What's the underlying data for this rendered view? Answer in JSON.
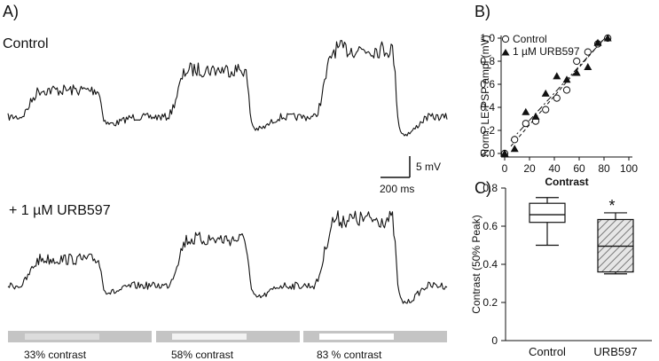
{
  "panel_a": {
    "label": "A)",
    "control_label": "Control",
    "urb_label": "+ 1 µM URB597",
    "scale_v": "5 mV",
    "scale_t": "200 ms",
    "stimuli": [
      "33% contrast",
      "58% contrast",
      "83 % contrast"
    ],
    "stimulus_brightness": [
      0.33,
      0.58,
      0.83
    ]
  },
  "chart_data": [
    {
      "type": "scatter",
      "panel": "B)",
      "xlabel": "Contrast",
      "ylabel": "Norm. LE-PSP ampl (mV)",
      "xlim": [
        0,
        100
      ],
      "ylim": [
        0,
        1.0
      ],
      "xticks": [
        "0",
        "20",
        "40",
        "60",
        "80",
        "100"
      ],
      "yticks": [
        "0.0",
        "0.2",
        "0.4",
        "0.6",
        "0.8",
        "1.0"
      ],
      "legend": [
        "Control",
        "1 µM URB597"
      ],
      "series": [
        {
          "name": "Control",
          "marker": "open-circle",
          "fit": "dashed",
          "x": [
            0,
            8,
            17,
            25,
            33,
            42,
            50,
            58,
            67,
            75,
            83
          ],
          "y": [
            0.0,
            0.12,
            0.26,
            0.28,
            0.38,
            0.48,
            0.55,
            0.8,
            0.88,
            0.95,
            1.0
          ]
        },
        {
          "name": "1 µM URB597",
          "marker": "filled-triangle",
          "fit": "dash-dot",
          "x": [
            0,
            8,
            17,
            25,
            33,
            42,
            50,
            58,
            67,
            75,
            83
          ],
          "y": [
            0.0,
            0.04,
            0.36,
            0.32,
            0.52,
            0.67,
            0.64,
            0.7,
            0.75,
            0.96,
            1.0
          ]
        }
      ]
    },
    {
      "type": "boxplot",
      "panel": "C)",
      "xlabel": "",
      "ylabel": "Contrast (50% Peak)",
      "ylim": [
        0,
        0.8
      ],
      "yticks": [
        "0",
        "0.2",
        "0.4",
        "0.6",
        "0.8"
      ],
      "categories": [
        "Control",
        "URB597"
      ],
      "boxes": [
        {
          "name": "Control",
          "min": 0.5,
          "q1": 0.62,
          "median": 0.66,
          "q3": 0.72,
          "max": 0.75,
          "hatched": false
        },
        {
          "name": "URB597",
          "min": 0.35,
          "q1": 0.36,
          "median": 0.495,
          "q3": 0.635,
          "max": 0.67,
          "hatched": true
        }
      ],
      "annotation": "*"
    }
  ],
  "panel_b_label": "B)",
  "panel_c_label": "C)"
}
